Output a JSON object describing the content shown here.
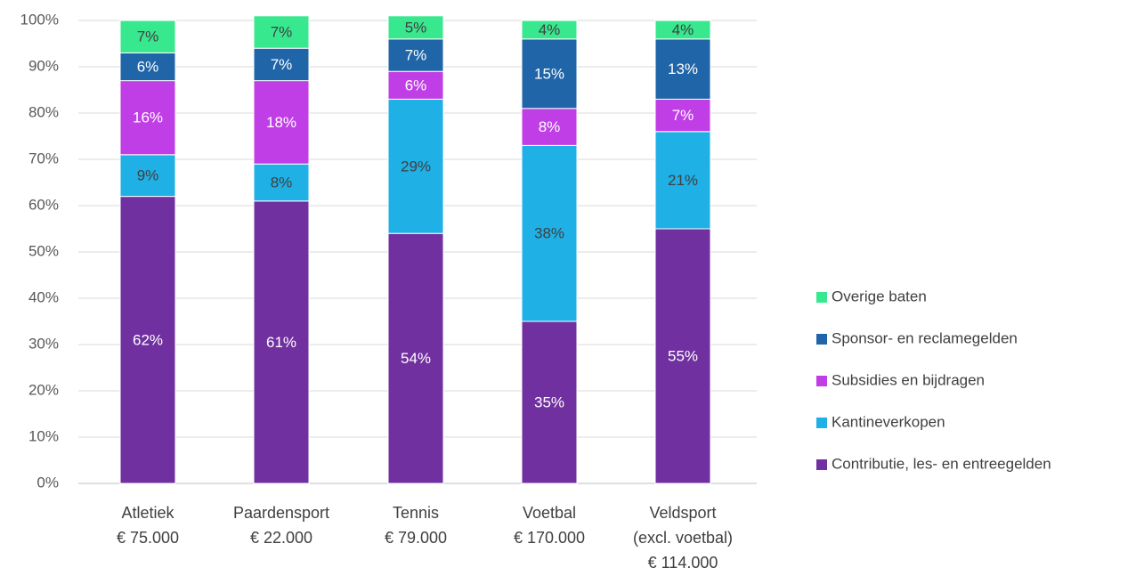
{
  "chart_data": {
    "type": "bar",
    "stacked": true,
    "percent": true,
    "grid": true,
    "legend_position": "right",
    "ylim": [
      0,
      100
    ],
    "yticks": [
      "0%",
      "10%",
      "20%",
      "30%",
      "40%",
      "50%",
      "60%",
      "70%",
      "80%",
      "90%",
      "100%"
    ],
    "categories": [
      [
        "Atletiek",
        "€ 75.000"
      ],
      [
        "Paardensport",
        "€ 22.000"
      ],
      [
        "Tennis",
        "€ 79.000"
      ],
      [
        "Voetbal",
        "€ 170.000"
      ],
      [
        "Veldsport",
        "(excl. voetbal)",
        "€ 114.000"
      ]
    ],
    "series": [
      {
        "name": "Contributie, les- en entreegelden",
        "color": "#7030a0",
        "label_color": "#ffffff",
        "values": [
          62,
          61,
          54,
          35,
          55
        ]
      },
      {
        "name": "Kantineverkopen",
        "color": "#1fb0e6",
        "label_color": "#404040",
        "values": [
          9,
          8,
          29,
          38,
          21
        ]
      },
      {
        "name": "Subsidies en bijdragen",
        "color": "#c03ee6",
        "label_color": "#ffffff",
        "values": [
          16,
          18,
          6,
          8,
          7
        ]
      },
      {
        "name": "Sponsor- en reclamegelden",
        "color": "#1f65a8",
        "label_color": "#ffffff",
        "values": [
          6,
          7,
          7,
          15,
          13
        ]
      },
      {
        "name": "Overige baten",
        "color": "#38e88e",
        "label_color": "#404040",
        "values": [
          7,
          7,
          5,
          4,
          4
        ]
      }
    ],
    "legend_order": [
      "Overige baten",
      "Sponsor- en reclamegelden",
      "Subsidies en bijdragen",
      "Kantineverkopen",
      "Contributie, les- en entreegelden"
    ]
  }
}
